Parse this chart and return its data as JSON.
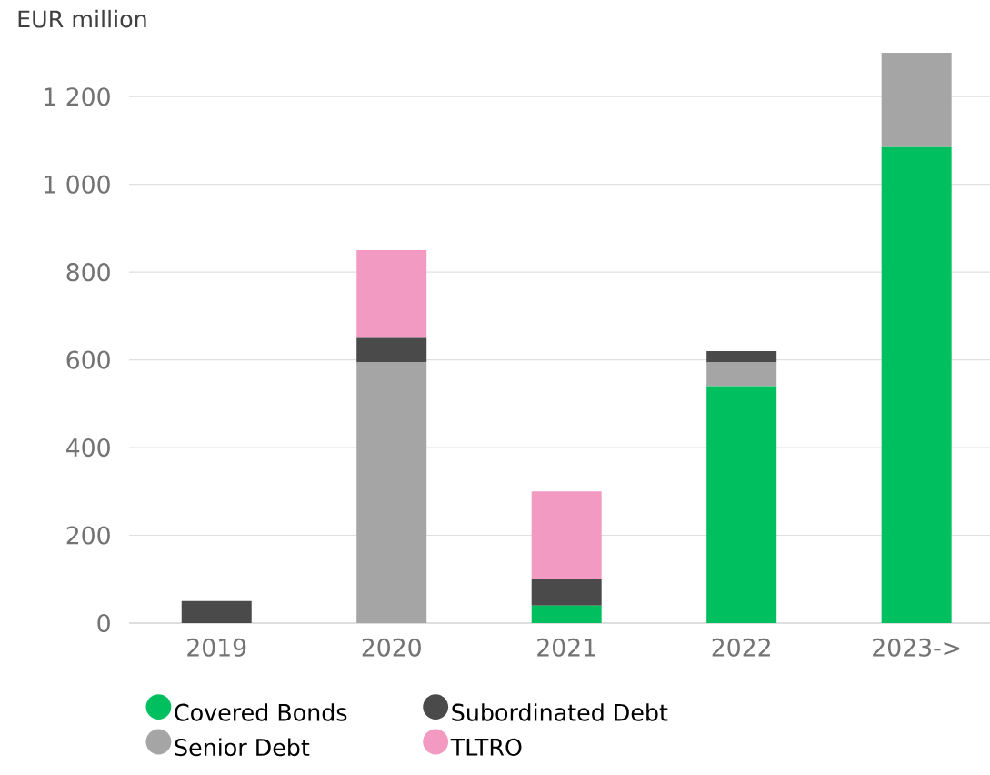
{
  "chart_data": {
    "type": "bar",
    "stacked": true,
    "ylabel": "EUR million",
    "categories": [
      "2019",
      "2020",
      "2021",
      "2022",
      "2023->"
    ],
    "series": [
      {
        "name": "Covered Bonds",
        "color": "#00bf5f",
        "values": [
          0,
          0,
          40,
          540,
          1085
        ]
      },
      {
        "name": "Senior Debt",
        "color": "#a5a5a5",
        "values": [
          0,
          595,
          0,
          55,
          215
        ]
      },
      {
        "name": "Subordinated Debt",
        "color": "#4a4a4a",
        "values": [
          50,
          55,
          60,
          25,
          0
        ]
      },
      {
        "name": "TLTRO",
        "color": "#f39ac2",
        "values": [
          0,
          200,
          200,
          0,
          0
        ]
      }
    ],
    "ylim": [
      0,
      1300
    ],
    "yticks": [
      0,
      200,
      400,
      600,
      800,
      {
        "value": 1000,
        "label": "1 000"
      },
      {
        "value": 1200,
        "label": "1 200"
      }
    ],
    "grid": "y",
    "legend": "bottom"
  }
}
